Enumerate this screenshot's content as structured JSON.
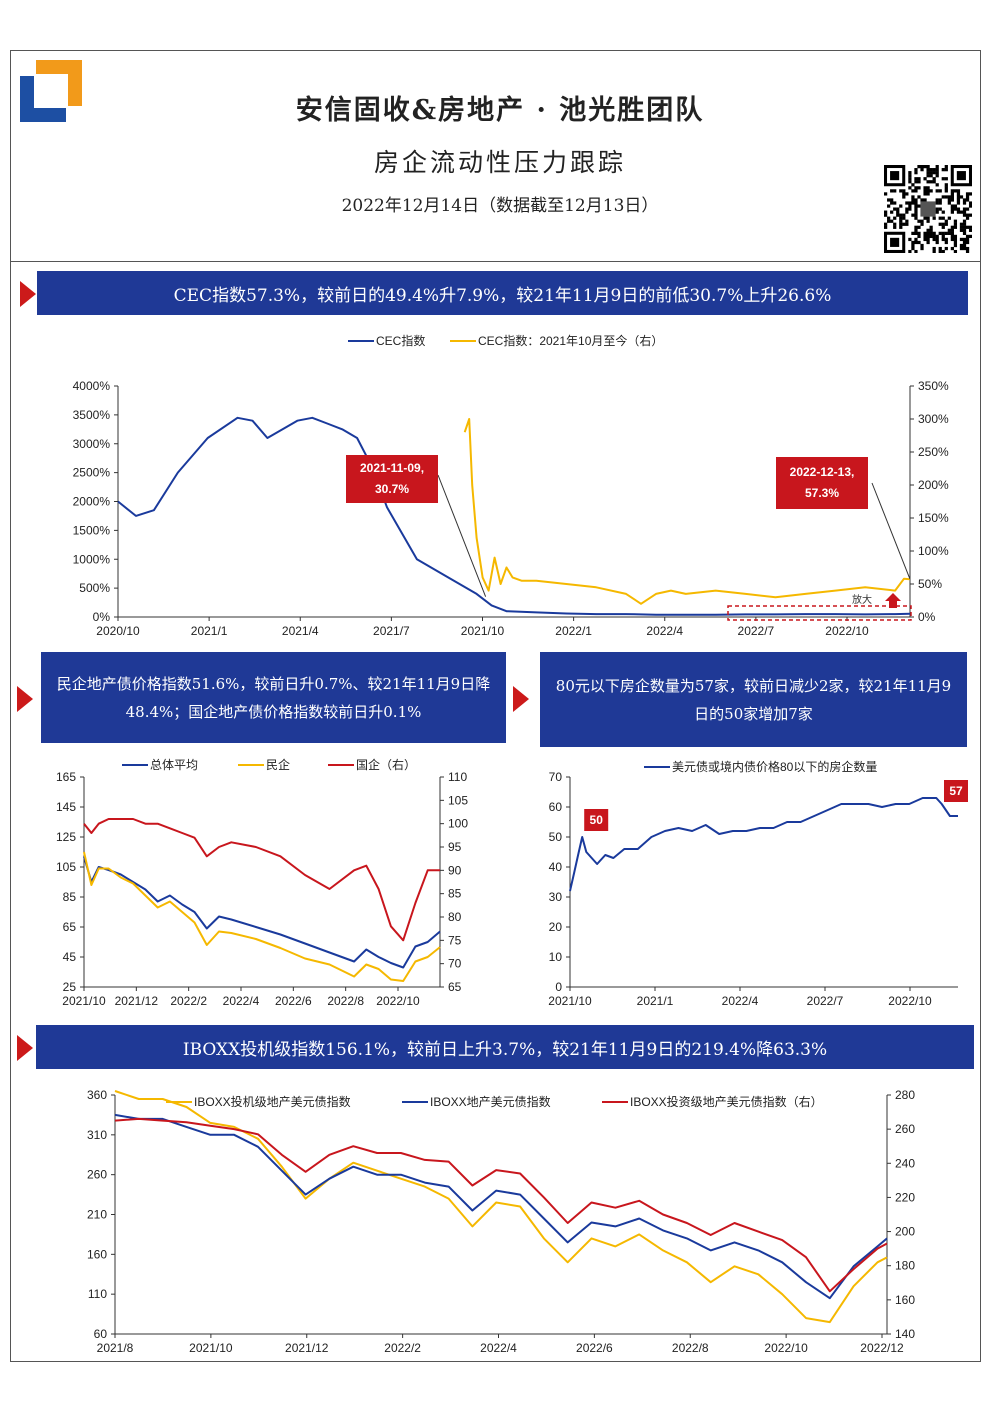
{
  "header": {
    "title": "安信固收&房地产 · 池光胜团队",
    "subtitle": "房企流动性压力跟踪",
    "date": "2022年12月14日（数据截至12月13日）"
  },
  "colors": {
    "navy": "#1f3996",
    "series_blue": "#1a3a9c",
    "series_yellow": "#f5b800",
    "series_red": "#c8161d",
    "callout": "#c8161d"
  },
  "logo_icon": "company-logo-icon",
  "qr_icon": "qr-code-icon",
  "banners": {
    "b1": "CEC指数57.3%，较前日的49.4%升7.9%，较21年11月9日的前低30.7%上升26.6%",
    "b2": "民企地产债价格指数51.6%，较前日升0.7%、较21年11月9日降48.4%；国企地产债价格指数较前日升0.1%",
    "b3": "80元以下房企数量为57家，较前日减少2家，较21年11月9日的50家增加7家",
    "b4": "IBOXX投机级指数156.1%，较前日上升3.7%，较21年11月9日的219.4%降63.3%"
  },
  "chart_data": [
    {
      "type": "line",
      "title": "",
      "legend": [
        "CEC指数",
        "CEC指数：2021年10月至今（右）"
      ],
      "left_axis": {
        "ticks": [
          "0%",
          "500%",
          "1000%",
          "1500%",
          "2000%",
          "2500%",
          "3000%",
          "3500%",
          "4000%"
        ],
        "ylim": [
          0,
          4000
        ]
      },
      "right_axis": {
        "ticks": [
          "0%",
          "50%",
          "100%",
          "150%",
          "200%",
          "250%",
          "300%",
          "350%"
        ],
        "ylim": [
          0,
          350
        ]
      },
      "x_ticks": [
        "2020/10",
        "2021/1",
        "2021/4",
        "2021/7",
        "2021/10",
        "2022/1",
        "2022/4",
        "2022/7",
        "2022/10"
      ],
      "x_index_range": [
        0,
        26.5
      ],
      "series": [
        {
          "name": "CEC指数",
          "axis": "left",
          "x": [
            0,
            0.6,
            1.2,
            2,
            3,
            4,
            4.5,
            5,
            6,
            6.5,
            7,
            7.5,
            8,
            8.5,
            9,
            10,
            11,
            11.5,
            12,
            12.5,
            13,
            14,
            15,
            16,
            17,
            18,
            19,
            20,
            21,
            22,
            23,
            24,
            25,
            26,
            26.5
          ],
          "values": [
            2000,
            1750,
            1850,
            2500,
            3100,
            3450,
            3400,
            3100,
            3400,
            3450,
            3350,
            3250,
            3100,
            2600,
            1900,
            1000,
            700,
            550,
            400,
            200,
            100,
            80,
            60,
            50,
            50,
            40,
            40,
            40,
            45,
            45,
            50,
            50,
            45,
            50,
            57.3
          ]
        },
        {
          "name": "CEC指数：2021年10月至今（右）",
          "axis": "right",
          "x": [
            11.6,
            11.75,
            11.85,
            12,
            12.2,
            12.4,
            12.6,
            12.8,
            13,
            13.2,
            13.5,
            14,
            15,
            16,
            17,
            17.5,
            18,
            18.5,
            19,
            20,
            21,
            22,
            23,
            24,
            25,
            26,
            26.3,
            26.5
          ],
          "values": [
            280,
            300,
            200,
            120,
            60,
            40,
            90,
            50,
            75,
            60,
            55,
            55,
            50,
            45,
            35,
            20,
            35,
            40,
            35,
            40,
            35,
            30,
            35,
            40,
            45,
            40,
            58,
            57.3
          ]
        }
      ],
      "annotations": [
        {
          "label": "2021-11-09,\n30.7%",
          "x": 12.3,
          "value": 30.7,
          "axis": "right"
        },
        {
          "label": "2022-12-13,\n57.3%",
          "x": 26.5,
          "value": 57.3,
          "axis": "right"
        },
        {
          "label": "放大",
          "x": 25.3,
          "value": 10,
          "axis": "right"
        }
      ]
    },
    {
      "type": "line",
      "title": "",
      "legend": [
        "总体平均",
        "民企",
        "国企（右）"
      ],
      "left_axis": {
        "ticks": [
          "25",
          "45",
          "65",
          "85",
          "105",
          "125",
          "145",
          "165"
        ],
        "ylim": [
          25,
          165
        ]
      },
      "right_axis": {
        "ticks": [
          "65",
          "70",
          "75",
          "80",
          "85",
          "90",
          "95",
          "100",
          "105",
          "110"
        ],
        "ylim": [
          65,
          110
        ]
      },
      "x_ticks": [
        "2021/10",
        "2021/12",
        "2022/2",
        "2022/4",
        "2022/6",
        "2022/8",
        "2022/10"
      ],
      "x_index_range": [
        0,
        14.5
      ],
      "series": [
        {
          "name": "总体平均",
          "axis": "left",
          "x": [
            0,
            0.3,
            0.6,
            1,
            1.5,
            2,
            2.5,
            3,
            3.5,
            4,
            4.5,
            5,
            5.5,
            6,
            7,
            8,
            9,
            10,
            11,
            11.5,
            12,
            12.5,
            13,
            13.5,
            14,
            14.5
          ],
          "values": [
            112,
            95,
            105,
            103,
            100,
            95,
            90,
            82,
            86,
            80,
            75,
            64,
            72,
            70,
            65,
            60,
            54,
            48,
            42,
            50,
            45,
            41,
            38,
            52,
            55,
            62
          ]
        },
        {
          "name": "民企",
          "axis": "left",
          "x": [
            0,
            0.3,
            0.6,
            1,
            1.5,
            2,
            2.5,
            3,
            3.5,
            4,
            4.5,
            5,
            5.5,
            6,
            7,
            8,
            9,
            10,
            11,
            11.5,
            12,
            12.5,
            13,
            13.5,
            14,
            14.5
          ],
          "values": [
            115,
            93,
            104,
            104,
            98,
            94,
            86,
            78,
            82,
            75,
            68,
            53,
            62,
            61,
            57,
            51,
            44,
            40,
            32,
            40,
            37,
            30,
            29,
            42,
            45,
            51.6
          ]
        },
        {
          "name": "国企（右）",
          "axis": "right",
          "x": [
            0,
            0.3,
            0.6,
            1,
            1.5,
            2,
            2.5,
            3,
            3.5,
            4,
            4.5,
            5,
            5.5,
            6,
            7,
            8,
            9,
            10,
            11,
            11.5,
            12,
            12.5,
            13,
            13.5,
            14,
            14.5
          ],
          "values": [
            100,
            98,
            100,
            101,
            101,
            101,
            100,
            100,
            99,
            98,
            97,
            93,
            95,
            96,
            95,
            93,
            89,
            86,
            90,
            91,
            86,
            78,
            75,
            83,
            90,
            90
          ]
        }
      ]
    },
    {
      "type": "line",
      "title": "",
      "legend": [
        "美元债或境内债价格80以下的房企数量"
      ],
      "left_axis": {
        "ticks": [
          "0",
          "10",
          "20",
          "30",
          "40",
          "50",
          "60",
          "70"
        ],
        "ylim": [
          0,
          70
        ]
      },
      "x_ticks": [
        "2021/10",
        "2021/1",
        "2022/4",
        "2022/7",
        "2022/10"
      ],
      "x_index_range": [
        0,
        14.3
      ],
      "series": [
        {
          "name": "美元债或境内债价格80以下的房企数量",
          "x": [
            0,
            0.15,
            0.3,
            0.45,
            0.6,
            1,
            1.3,
            1.6,
            2,
            2.5,
            3,
            3.5,
            4,
            4.5,
            5,
            5.5,
            6,
            6.5,
            7,
            7.5,
            8,
            8.5,
            9,
            9.5,
            10,
            10.5,
            11,
            11.5,
            12,
            12.5,
            13,
            13.5,
            13.7,
            14,
            14.3
          ],
          "values": [
            32,
            38,
            44,
            50,
            45,
            41,
            44,
            43,
            46,
            46,
            50,
            52,
            53,
            52,
            54,
            51,
            52,
            52,
            53,
            53,
            55,
            55,
            57,
            59,
            61,
            61,
            61,
            60,
            61,
            61,
            63,
            63,
            61,
            57,
            57
          ]
        }
      ],
      "annotations": [
        {
          "label": "50",
          "x": 0.45,
          "value": 50
        },
        {
          "label": "57",
          "x": 14.3,
          "value": 57
        }
      ]
    },
    {
      "type": "line",
      "title": "",
      "legend": [
        "IBOXX投机级地产美元债指数",
        "IBOXX地产美元债指数",
        "IBOXX投资级地产美元债指数（右）"
      ],
      "left_axis": {
        "ticks": [
          "60",
          "110",
          "160",
          "210",
          "260",
          "310",
          "360"
        ],
        "ylim": [
          60,
          360
        ]
      },
      "right_axis": {
        "ticks": [
          "140",
          "160",
          "180",
          "200",
          "220",
          "240",
          "260",
          "280"
        ],
        "ylim": [
          140,
          280
        ]
      },
      "x_ticks": [
        "2021/8",
        "2021/10",
        "2021/12",
        "2022/2",
        "2022/4",
        "2022/6",
        "2022/8",
        "2022/10",
        "2022/12"
      ],
      "x_index_range": [
        0,
        16.2
      ],
      "series": [
        {
          "name": "IBOXX投机级地产美元债指数",
          "axis": "left",
          "x": [
            0,
            0.5,
            1,
            1.5,
            2,
            2.5,
            3,
            3.5,
            4,
            4.5,
            5,
            5.5,
            6,
            6.5,
            7,
            7.5,
            8,
            8.5,
            9,
            9.5,
            10,
            10.5,
            11,
            11.5,
            12,
            12.5,
            13,
            13.5,
            14,
            14.5,
            15,
            15.5,
            16,
            16.2
          ],
          "values": [
            365,
            355,
            355,
            345,
            325,
            320,
            305,
            270,
            230,
            255,
            275,
            265,
            255,
            245,
            230,
            195,
            225,
            220,
            180,
            150,
            180,
            170,
            185,
            165,
            150,
            125,
            145,
            135,
            110,
            80,
            75,
            120,
            150,
            156.1
          ]
        },
        {
          "name": "IBOXX地产美元债指数",
          "axis": "left",
          "x": [
            0,
            0.5,
            1,
            1.5,
            2,
            2.5,
            3,
            3.5,
            4,
            4.5,
            5,
            5.5,
            6,
            6.5,
            7,
            7.5,
            8,
            8.5,
            9,
            9.5,
            10,
            10.5,
            11,
            11.5,
            12,
            12.5,
            13,
            13.5,
            14,
            14.5,
            15,
            15.5,
            16,
            16.2
          ],
          "values": [
            335,
            330,
            330,
            320,
            310,
            310,
            295,
            265,
            235,
            255,
            270,
            260,
            260,
            250,
            245,
            215,
            240,
            235,
            205,
            175,
            200,
            195,
            205,
            190,
            180,
            165,
            175,
            165,
            150,
            125,
            105,
            145,
            170,
            180
          ]
        },
        {
          "name": "IBOXX投资级地产美元债指数（右）",
          "axis": "right",
          "x": [
            0,
            0.5,
            1,
            1.5,
            2,
            2.5,
            3,
            3.5,
            4,
            4.5,
            5,
            5.5,
            6,
            6.5,
            7,
            7.5,
            8,
            8.5,
            9,
            9.5,
            10,
            10.5,
            11,
            11.5,
            12,
            12.5,
            13,
            13.5,
            14,
            14.5,
            15,
            15.5,
            16,
            16.2
          ],
          "values": [
            265,
            266,
            265,
            264,
            262,
            260,
            257,
            245,
            235,
            245,
            250,
            246,
            246,
            242,
            241,
            227,
            236,
            234,
            220,
            205,
            217,
            214,
            218,
            210,
            205,
            198,
            205,
            200,
            195,
            185,
            165,
            178,
            190,
            193
          ]
        }
      ]
    }
  ]
}
